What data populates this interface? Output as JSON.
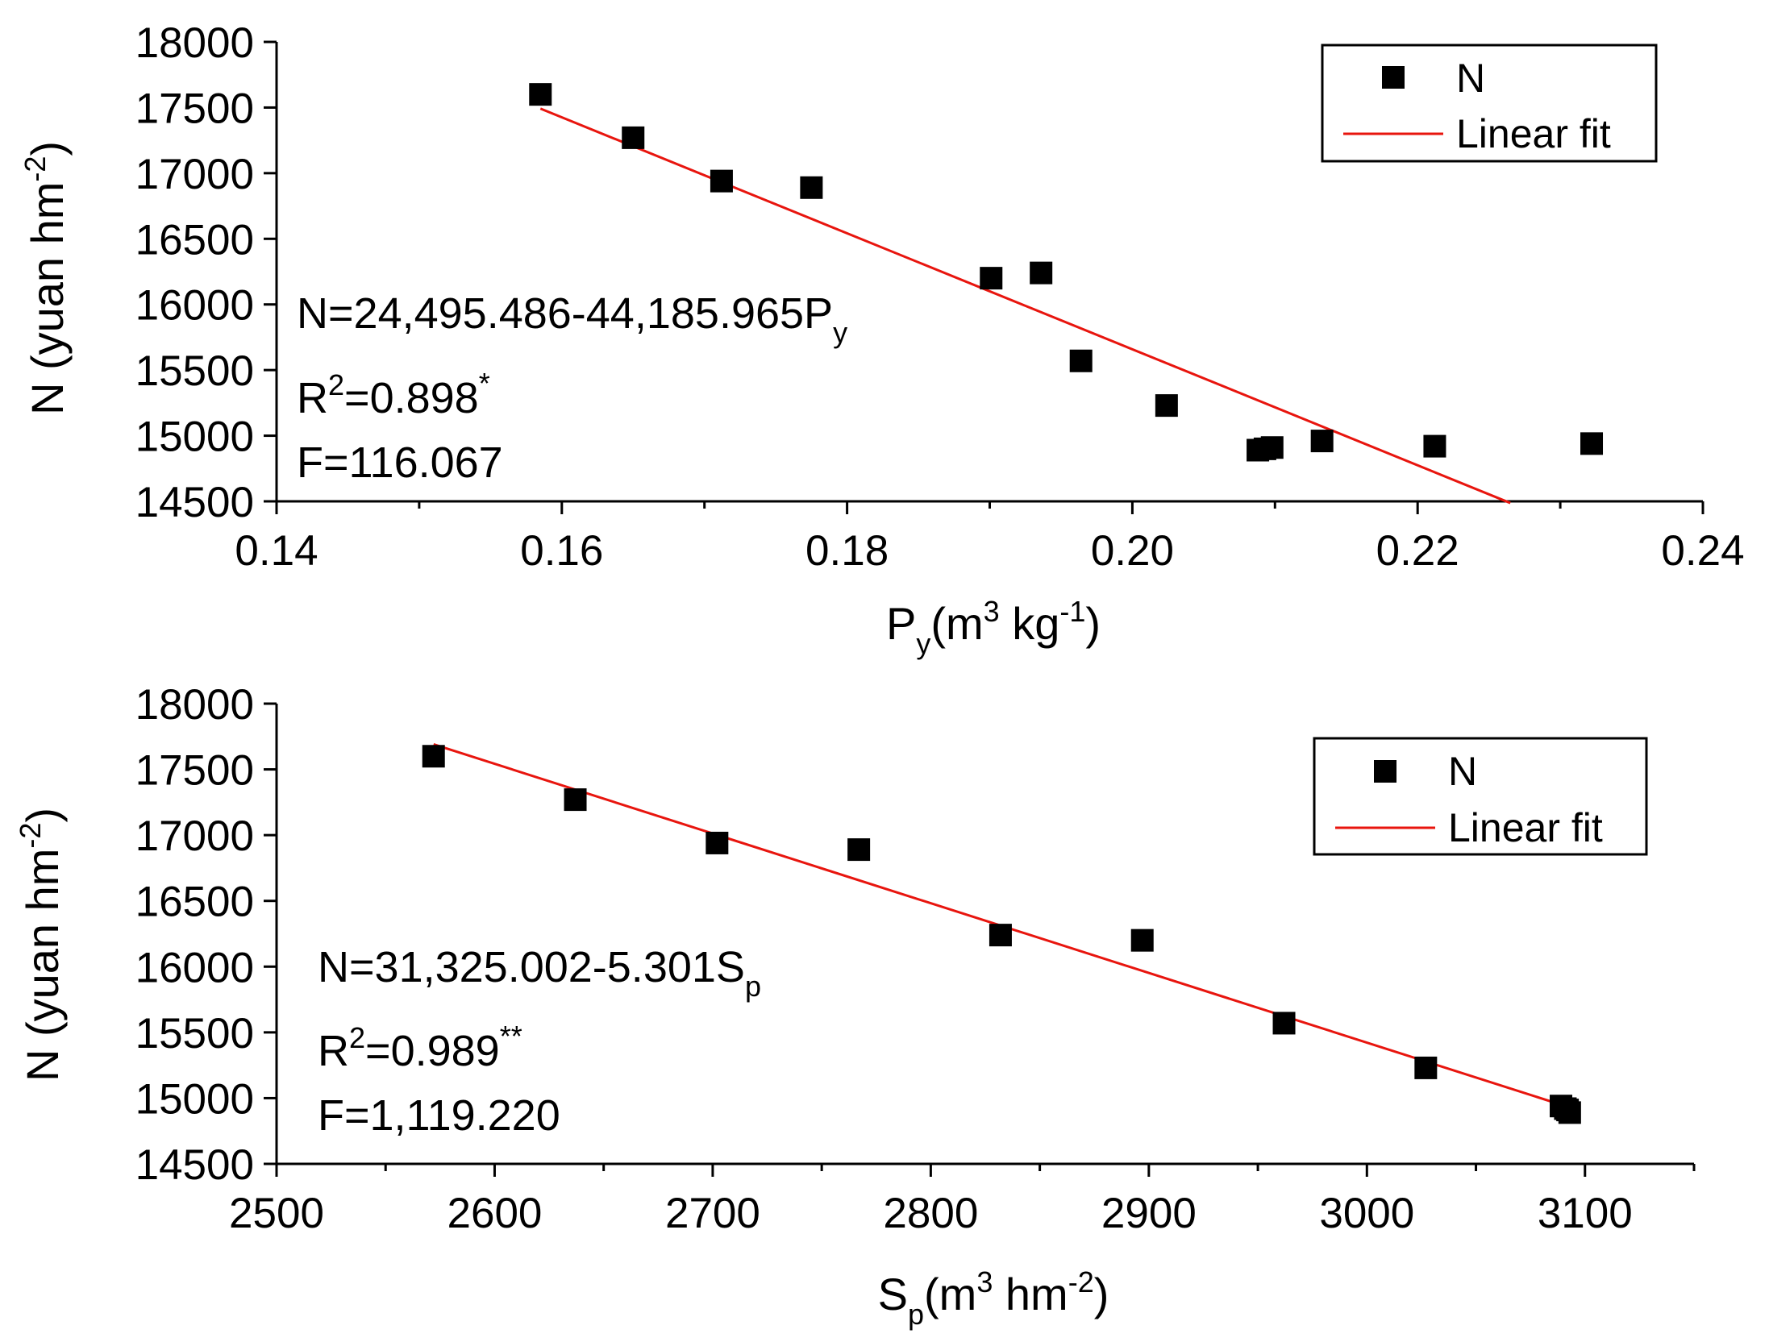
{
  "colors": {
    "points": "#000000",
    "fit_line": "#e8150e",
    "axes": "#000000",
    "background": "#ffffff"
  },
  "chart_data": [
    {
      "type": "scatter",
      "id": "top",
      "xlabel": {
        "base": "P",
        "sub": "y",
        "rest": "(m",
        "sup1": "3",
        "mid": " kg",
        "sup2": "-1",
        "end": ")"
      },
      "ylabel": {
        "base": "N (yuan hm",
        "sup": "-2",
        "end": ")"
      },
      "xlim": [
        0.14,
        0.24
      ],
      "ylim": [
        14500,
        18000
      ],
      "xticks": [
        0.14,
        0.16,
        0.18,
        0.2,
        0.22,
        0.24
      ],
      "xtick_labels": [
        "0.14",
        "0.16",
        "0.18",
        "0.20",
        "0.22",
        "0.24"
      ],
      "yticks": [
        14500,
        15000,
        15500,
        16000,
        16500,
        17000,
        17500,
        18000
      ],
      "ytick_labels": [
        "14500",
        "15000",
        "15500",
        "16000",
        "16500",
        "17000",
        "17500",
        "18000"
      ],
      "series": [
        {
          "name": "N",
          "x": [
            0.1585,
            0.165,
            0.1712,
            0.1775,
            0.1901,
            0.1936,
            0.1964,
            0.2024,
            0.2088,
            0.2093,
            0.2098,
            0.2133,
            0.2212,
            0.2322
          ],
          "y": [
            17600,
            17270,
            16940,
            16890,
            16200,
            16240,
            15570,
            15230,
            14890,
            14900,
            14910,
            14960,
            14920,
            14940
          ]
        }
      ],
      "fit": {
        "intercept": 24495.486,
        "slope": -44185.965,
        "x_range": [
          0.1585,
          0.2265
        ]
      },
      "equation": {
        "line1_main": "N=24,495.486-44,185.965P",
        "line1_sub": "y",
        "line2_main": "R",
        "line2_sup": "2",
        "line2_rest": "=0.898",
        "line2_star": "*",
        "line3": "F=116.067"
      },
      "legend": {
        "points_label": "N",
        "line_label": "Linear fit",
        "position": "top-right"
      }
    },
    {
      "type": "scatter",
      "id": "bottom",
      "xlabel": {
        "base": "S",
        "sub": "p",
        "rest": "(m",
        "sup1": "3",
        "mid": " hm",
        "sup2": "-2",
        "end": ")"
      },
      "ylabel": {
        "base": "N (yuan hm",
        "sup": "-2",
        "end": ")"
      },
      "xlim": [
        2500,
        3150
      ],
      "ylim": [
        14500,
        18000
      ],
      "xticks": [
        2500,
        2600,
        2700,
        2800,
        2900,
        3000,
        3100
      ],
      "xtick_labels": [
        "2500",
        "2600",
        "2700",
        "2800",
        "2900",
        "3000",
        "3100"
      ],
      "yticks": [
        14500,
        15000,
        15500,
        16000,
        16500,
        17000,
        17500,
        18000
      ],
      "ytick_labels": [
        "14500",
        "15000",
        "15500",
        "16000",
        "16500",
        "17000",
        "17500",
        "18000"
      ],
      "series": [
        {
          "name": "N",
          "x": [
            2572,
            2637,
            2702,
            2767,
            2832,
            2897,
            2962,
            3027,
            3089,
            3091,
            3092,
            3093
          ],
          "y": [
            17600,
            17270,
            16940,
            16890,
            16240,
            16200,
            15570,
            15230,
            14940,
            14920,
            14910,
            14890
          ]
        }
      ],
      "fit": {
        "intercept": 31325.002,
        "slope": -5.301,
        "x_range": [
          2572,
          3093
        ]
      },
      "equation": {
        "line1_main": "N=31,325.002-5.301S",
        "line1_sub": "p",
        "line2_main": "R",
        "line2_sup": "2",
        "line2_rest": "=0.989",
        "line2_star": "**",
        "line3": "F=1,119.220"
      },
      "legend": {
        "points_label": "N",
        "line_label": "Linear fit",
        "position": "top-right"
      }
    }
  ]
}
